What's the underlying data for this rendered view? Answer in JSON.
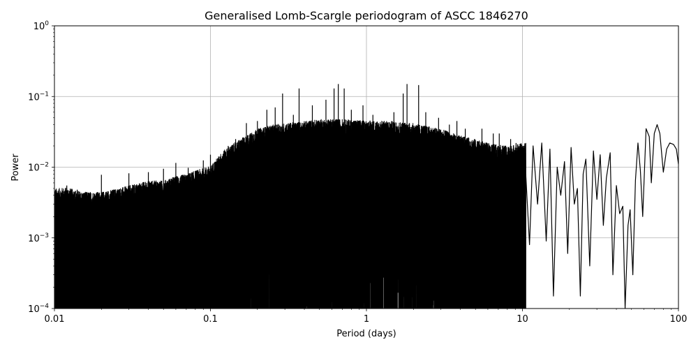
{
  "chart_data": {
    "type": "line",
    "title": "Generalised Lomb-Scargle periodogram of ASCC 1846270",
    "xlabel": "Period (days)",
    "ylabel": "Power",
    "xscale": "log",
    "yscale": "log",
    "xlim": [
      0.01,
      100
    ],
    "ylim": [
      0.0001,
      1
    ],
    "grid": true,
    "line_color": "#000000",
    "x_ticks": [
      {
        "value": 0.01,
        "label": "0.01"
      },
      {
        "value": 0.1,
        "label": "0.1"
      },
      {
        "value": 1,
        "label": "1"
      },
      {
        "value": 10,
        "label": "10"
      },
      {
        "value": 100,
        "label": "100"
      }
    ],
    "y_ticks": [
      {
        "value": 0.0001,
        "base": "10",
        "exp": "−4"
      },
      {
        "value": 0.001,
        "base": "10",
        "exp": "−3"
      },
      {
        "value": 0.01,
        "base": "10",
        "exp": "−2"
      },
      {
        "value": 0.1,
        "base": "10",
        "exp": "−1"
      },
      {
        "value": 1,
        "base": "10",
        "exp": "0"
      }
    ],
    "series": [
      {
        "envelope_note_free": true,
        "envelope": [
          [
            0.01,
            0.005
          ],
          [
            0.012,
            0.0052
          ],
          [
            0.015,
            0.0045
          ],
          [
            0.02,
            0.0045
          ],
          [
            0.025,
            0.005
          ],
          [
            0.03,
            0.0055
          ],
          [
            0.04,
            0.0065
          ],
          [
            0.05,
            0.0065
          ],
          [
            0.06,
            0.0075
          ],
          [
            0.07,
            0.008
          ],
          [
            0.08,
            0.009
          ],
          [
            0.1,
            0.0105
          ],
          [
            0.12,
            0.017
          ],
          [
            0.15,
            0.024
          ],
          [
            0.2,
            0.035
          ],
          [
            0.25,
            0.04
          ],
          [
            0.3,
            0.042
          ],
          [
            0.4,
            0.045
          ],
          [
            0.5,
            0.048
          ],
          [
            0.7,
            0.048
          ],
          [
            1.0,
            0.046
          ],
          [
            1.5,
            0.045
          ],
          [
            2.0,
            0.042
          ],
          [
            3.0,
            0.035
          ],
          [
            4.0,
            0.028
          ],
          [
            5.0,
            0.025
          ],
          [
            6.0,
            0.022
          ],
          [
            8.0,
            0.02
          ],
          [
            10.0,
            0.022
          ],
          [
            15.0,
            0.02
          ]
        ],
        "peaks": [
          [
            0.012,
            0.0055
          ],
          [
            0.014,
            0.0048
          ],
          [
            0.02,
            0.0078
          ],
          [
            0.03,
            0.0082
          ],
          [
            0.04,
            0.0085
          ],
          [
            0.05,
            0.0095
          ],
          [
            0.06,
            0.0115
          ],
          [
            0.072,
            0.0098
          ],
          [
            0.09,
            0.0125
          ],
          [
            0.1,
            0.015
          ],
          [
            0.116,
            0.014
          ],
          [
            0.13,
            0.02
          ],
          [
            0.145,
            0.025
          ],
          [
            0.17,
            0.042
          ],
          [
            0.2,
            0.045
          ],
          [
            0.23,
            0.065
          ],
          [
            0.26,
            0.07
          ],
          [
            0.29,
            0.11
          ],
          [
            0.34,
            0.055
          ],
          [
            0.37,
            0.13
          ],
          [
            0.45,
            0.075
          ],
          [
            0.55,
            0.09
          ],
          [
            0.62,
            0.13
          ],
          [
            0.66,
            0.15
          ],
          [
            0.72,
            0.13
          ],
          [
            0.8,
            0.065
          ],
          [
            0.95,
            0.075
          ],
          [
            1.1,
            0.055
          ],
          [
            1.3,
            0.045
          ],
          [
            1.5,
            0.06
          ],
          [
            1.72,
            0.11
          ],
          [
            1.82,
            0.15
          ],
          [
            2.16,
            0.145
          ],
          [
            2.4,
            0.06
          ],
          [
            2.9,
            0.05
          ],
          [
            3.4,
            0.04
          ],
          [
            3.8,
            0.045
          ],
          [
            4.3,
            0.035
          ],
          [
            5.5,
            0.035
          ],
          [
            6.5,
            0.03
          ],
          [
            7.1,
            0.03
          ],
          [
            8.4,
            0.025
          ],
          [
            9.1,
            0.022
          ],
          [
            10.5,
            0.022
          ]
        ],
        "points": [
          [
            10.5,
            0.008
          ],
          [
            11.1,
            0.0008
          ],
          [
            11.7,
            0.02
          ],
          [
            12.5,
            0.003
          ],
          [
            13.3,
            0.022
          ],
          [
            14.2,
            0.0009
          ],
          [
            15.0,
            0.018
          ],
          [
            15.8,
            0.00015
          ],
          [
            16.7,
            0.01
          ],
          [
            17.6,
            0.004
          ],
          [
            18.6,
            0.012
          ],
          [
            19.5,
            0.0006
          ],
          [
            20.5,
            0.019
          ],
          [
            21.5,
            0.003
          ],
          [
            22.5,
            0.005
          ],
          [
            23.5,
            0.00015
          ],
          [
            24.5,
            0.008
          ],
          [
            25.5,
            0.013
          ],
          [
            27.0,
            0.0004
          ],
          [
            28.5,
            0.017
          ],
          [
            30.0,
            0.0035
          ],
          [
            31.5,
            0.015
          ],
          [
            33.0,
            0.0015
          ],
          [
            34.5,
            0.007
          ],
          [
            36.5,
            0.016
          ],
          [
            38.0,
            0.0003
          ],
          [
            40.0,
            0.0055
          ],
          [
            42.0,
            0.0022
          ],
          [
            44.0,
            0.0028
          ],
          [
            45.5,
            0.0001
          ],
          [
            47.5,
            0.0015
          ],
          [
            49.0,
            0.0025
          ],
          [
            51.0,
            0.0003
          ],
          [
            53.0,
            0.0065
          ],
          [
            55.0,
            0.022
          ],
          [
            57.0,
            0.009
          ],
          [
            59.0,
            0.002
          ],
          [
            62.0,
            0.035
          ],
          [
            65.0,
            0.027
          ],
          [
            67.0,
            0.006
          ],
          [
            70.0,
            0.03
          ],
          [
            73.0,
            0.04
          ],
          [
            76.0,
            0.03
          ],
          [
            80.0,
            0.0085
          ],
          [
            84.0,
            0.018
          ],
          [
            88.0,
            0.022
          ],
          [
            93.0,
            0.021
          ],
          [
            97.0,
            0.018
          ],
          [
            100.0,
            0.011
          ]
        ]
      }
    ]
  }
}
